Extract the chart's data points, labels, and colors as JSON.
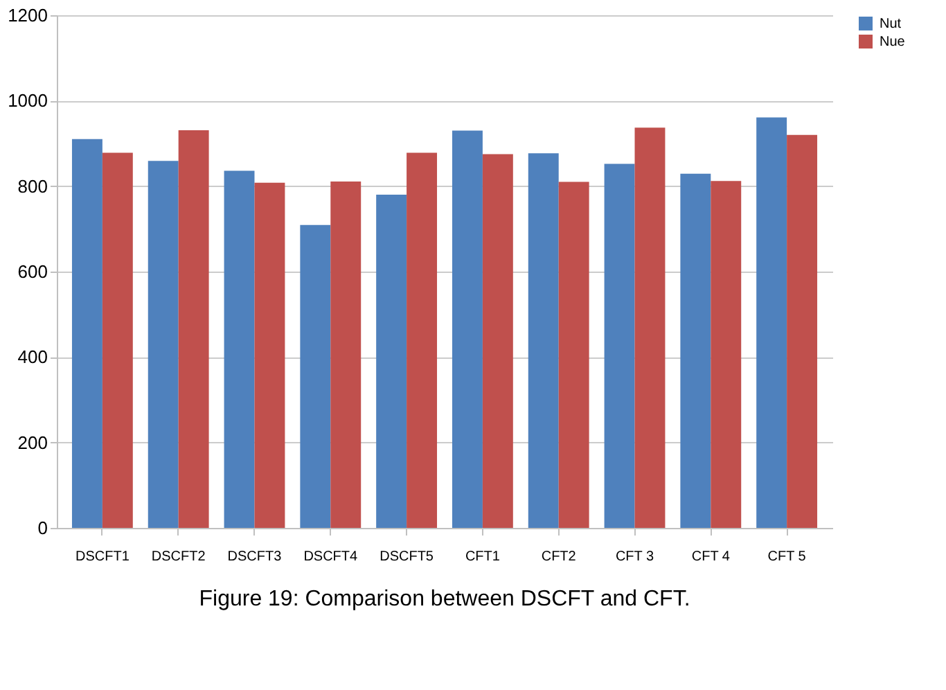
{
  "chart_data": {
    "type": "bar",
    "title": "Figure 19: Comparison between DSCFT and CFT.",
    "categories": [
      "DSCFT1",
      "DSCFT2",
      "DSCFT3",
      "DSCFT4",
      "DSCFT5",
      "CFT1",
      "CFT2",
      "CFT 3",
      "CFT 4",
      "CFT 5"
    ],
    "series": [
      {
        "name": "Nut",
        "color": "#4f81bd",
        "values": [
          910,
          859,
          836,
          709,
          780,
          930,
          877,
          852,
          829,
          961
        ]
      },
      {
        "name": "Nue",
        "color": "#c0504d",
        "values": [
          878,
          931,
          808,
          811,
          878,
          875,
          810,
          937,
          812,
          920
        ]
      }
    ],
    "ylim": [
      0,
      1200
    ],
    "yticks": [
      0,
      200,
      400,
      600,
      800,
      1000,
      1200
    ],
    "grid": "y",
    "legend": "right"
  }
}
